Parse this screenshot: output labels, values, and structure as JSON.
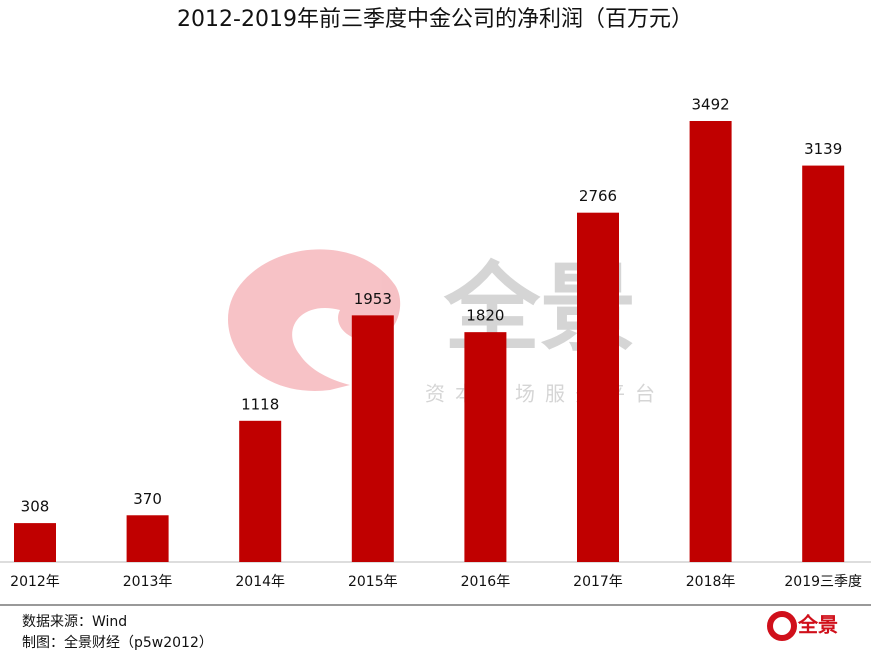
{
  "chart_data": {
    "type": "bar",
    "title": "2012-2019年前三季度中金公司的净利润（百万元）",
    "categories": [
      "2012年",
      "2013年",
      "2014年",
      "2015年",
      "2016年",
      "2017年",
      "2018年",
      "2019三季度"
    ],
    "values": [
      308,
      370,
      1118,
      1953,
      1820,
      2766,
      3492,
      3139
    ],
    "color": "#c00000"
  },
  "source": "数据来源：Wind",
  "credit": "制图：全景财经（p5w2012）",
  "watermark": {
    "title": "全景",
    "subtitle": "资本市场服务平台"
  },
  "logo": "全景"
}
